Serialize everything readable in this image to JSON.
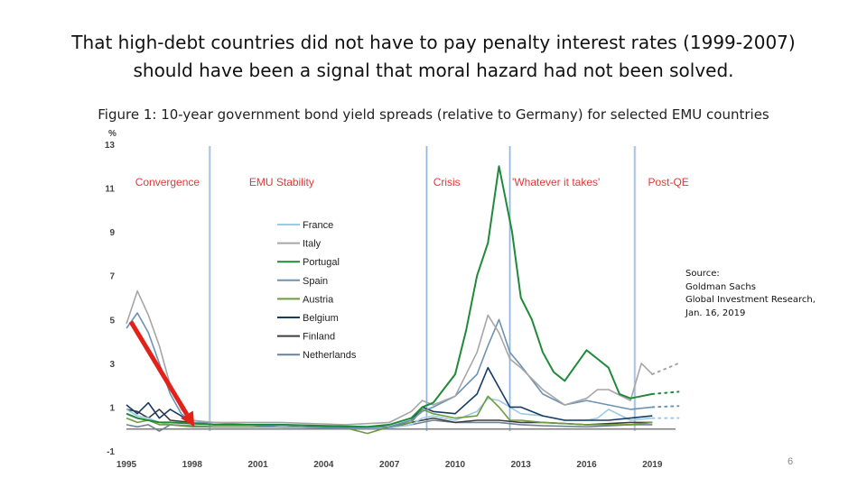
{
  "slide": {
    "title_line1": "That high-debt countries did not have to pay penalty interest rates (1999-2007)",
    "title_line2": "should have been a signal that moral hazard had not been solved.",
    "figure_caption": "Figure 1: 10-year government bond yield spreads (relative to Germany) for selected EMU countries",
    "source_lines": [
      "Source:",
      "Goldman Sachs",
      "Global Investment Research,",
      "Jan. 16, 2019"
    ],
    "page_number": "6"
  },
  "colors": {
    "France": "#9ccbe6",
    "Italy": "#a6a6a6",
    "Portugal": "#1f8a3a",
    "Spain": "#6c93b4",
    "Austria": "#6e9b3c",
    "Belgium": "#163c66",
    "Finland": "#3d3d3d",
    "Netherlands": "#6e8294",
    "period_label": "#e03a3a",
    "arrow": "#e32119"
  },
  "chart_data": {
    "type": "line",
    "title": "10-year government bond yield spreads (relative to Germany) for selected EMU countries",
    "xlabel": "",
    "ylabel": "%",
    "xlim": [
      1995,
      2020.8
    ],
    "ylim": [
      -1,
      13
    ],
    "yticks": [
      -1,
      1,
      3,
      5,
      7,
      9,
      11,
      13
    ],
    "xticks": [
      1995,
      1998,
      2001,
      2004,
      2007,
      2010,
      2013,
      2016,
      2019
    ],
    "xtick_labels": [
      "1995",
      "1998",
      "2001",
      "2004",
      "2007",
      "2010",
      "2013",
      "2016",
      "2019"
    ],
    "periods": [
      {
        "label": "Convergence",
        "x": 1995.4
      },
      {
        "label": "EMU Stability",
        "x": 2000.6
      },
      {
        "label": "Crisis",
        "x": 2009.0
      },
      {
        "label": "'Whatever it takes'",
        "x": 2012.6
      },
      {
        "label": "Post-QE",
        "x": 2018.8
      }
    ],
    "period_boundaries": [
      1998.8,
      2008.7,
      2012.5,
      2018.2
    ],
    "annotation": {
      "type": "arrow",
      "from": [
        1995.2,
        4.9
      ],
      "to": [
        1998.1,
        0.1
      ]
    },
    "series": [
      {
        "name": "France",
        "x": [
          1995,
          1995.5,
          1996,
          1996.5,
          1997,
          1998,
          1999,
          2002,
          2005,
          2007,
          2008,
          2008.5,
          2009,
          2010,
          2011,
          2011.5,
          2012,
          2013,
          2014,
          2015,
          2016,
          2016.5,
          2017,
          2018,
          2019
        ],
        "values": [
          0.9,
          0.6,
          0.5,
          0.3,
          0.2,
          0.1,
          0.1,
          0.1,
          0.05,
          0.05,
          0.2,
          0.5,
          0.6,
          0.4,
          0.8,
          1.4,
          1.3,
          0.7,
          0.6,
          0.4,
          0.4,
          0.5,
          0.9,
          0.4,
          0.5
        ],
        "forecast": {
          "x": [
            2019,
            2020.2
          ],
          "values": [
            0.5,
            0.5
          ]
        }
      },
      {
        "name": "Italy",
        "x": [
          1995,
          1995.5,
          1996,
          1996.5,
          1997,
          1997.5,
          1998,
          1999,
          2002,
          2005,
          2007,
          2008,
          2008.5,
          2009,
          2010,
          2011,
          2011.5,
          2012,
          2012.5,
          2013,
          2014,
          2015,
          2016,
          2016.5,
          2017,
          2018,
          2018.5,
          2019
        ],
        "values": [
          4.8,
          6.3,
          5.2,
          3.8,
          2.0,
          0.9,
          0.4,
          0.3,
          0.3,
          0.2,
          0.3,
          0.8,
          1.3,
          1.1,
          1.5,
          3.5,
          5.2,
          4.4,
          3.2,
          2.8,
          1.8,
          1.1,
          1.4,
          1.8,
          1.8,
          1.3,
          3.0,
          2.5
        ],
        "forecast": {
          "x": [
            2019,
            2020.2
          ],
          "values": [
            2.5,
            3.0
          ]
        }
      },
      {
        "name": "Portugal",
        "x": [
          1995,
          1995.5,
          1996,
          1996.5,
          1997,
          1998,
          1999,
          2002,
          2004,
          2006,
          2007,
          2008,
          2008.5,
          2009,
          2010,
          2010.5,
          2011,
          2011.5,
          2012,
          2012.3,
          2012.6,
          2013,
          2013.5,
          2014,
          2014.5,
          2015,
          2016,
          2016.5,
          2017,
          2017.5,
          2018,
          2018.5,
          2019
        ],
        "values": [
          0.7,
          0.5,
          0.4,
          0.3,
          0.3,
          0.25,
          0.2,
          0.2,
          0.15,
          0.1,
          0.2,
          0.5,
          1.0,
          1.2,
          2.5,
          4.5,
          7.0,
          8.5,
          12.0,
          10.5,
          9.0,
          6.0,
          5.0,
          3.5,
          2.6,
          2.2,
          3.6,
          3.2,
          2.8,
          1.6,
          1.4,
          1.5,
          1.6
        ],
        "forecast": {
          "x": [
            2019,
            2020.2
          ],
          "values": [
            1.6,
            1.7
          ]
        }
      },
      {
        "name": "Spain",
        "x": [
          1995,
          1995.5,
          1996,
          1996.5,
          1997,
          1997.5,
          1998,
          1999,
          2002,
          2005,
          2007,
          2008,
          2008.5,
          2009,
          2010,
          2011,
          2011.5,
          2012,
          2012.5,
          2013,
          2014,
          2015,
          2016,
          2017,
          2018,
          2019
        ],
        "values": [
          4.6,
          5.3,
          4.4,
          3.0,
          1.6,
          0.7,
          0.3,
          0.3,
          0.1,
          0.05,
          0.1,
          0.4,
          0.8,
          1.0,
          1.5,
          2.5,
          3.8,
          5.0,
          3.5,
          2.9,
          1.6,
          1.1,
          1.3,
          1.1,
          0.9,
          1.0
        ],
        "forecast": {
          "x": [
            2019,
            2020.2
          ],
          "values": [
            1.0,
            1.05
          ]
        }
      },
      {
        "name": "Austria",
        "x": [
          1995,
          1995.5,
          1996,
          1996.5,
          1997,
          1998,
          1999,
          2002,
          2005,
          2006,
          2007,
          2008,
          2008.5,
          2009,
          2010,
          2011,
          2011.5,
          2012,
          2012.5,
          2013,
          2014,
          2016,
          2018,
          2019
        ],
        "values": [
          0.5,
          0.3,
          0.4,
          0.2,
          0.2,
          0.1,
          0.1,
          0.1,
          0.05,
          -0.2,
          0.1,
          0.3,
          0.9,
          0.7,
          0.5,
          0.6,
          1.5,
          1.0,
          0.4,
          0.4,
          0.3,
          0.2,
          0.2,
          0.3
        ],
        "forecast": null
      },
      {
        "name": "Belgium",
        "x": [
          1995,
          1995.5,
          1996,
          1996.5,
          1997,
          1998,
          1999,
          2002,
          2005,
          2007,
          2008,
          2008.5,
          2009,
          2010,
          2011,
          2011.5,
          2012,
          2012.5,
          2013,
          2014,
          2015,
          2016,
          2017,
          2018,
          2019
        ],
        "values": [
          1.1,
          0.7,
          1.2,
          0.5,
          0.9,
          0.3,
          0.2,
          0.2,
          0.1,
          0.1,
          0.4,
          1.0,
          0.8,
          0.7,
          1.6,
          2.8,
          1.9,
          1.0,
          1.0,
          0.6,
          0.4,
          0.4,
          0.4,
          0.5,
          0.6
        ],
        "forecast": null
      },
      {
        "name": "Finland",
        "x": [
          1995,
          1995.5,
          1996,
          1996.5,
          1997,
          1998,
          1999,
          2002,
          2005,
          2007,
          2008,
          2009,
          2010,
          2011,
          2012,
          2013,
          2014,
          2016,
          2018,
          2019
        ],
        "values": [
          0.9,
          0.8,
          0.5,
          0.9,
          0.4,
          0.3,
          0.2,
          0.2,
          0.1,
          0.05,
          0.3,
          0.5,
          0.3,
          0.4,
          0.4,
          0.3,
          0.3,
          0.2,
          0.3,
          0.3
        ],
        "forecast": null
      },
      {
        "name": "Netherlands",
        "x": [
          1995,
          1995.5,
          1996,
          1996.5,
          1997,
          1998,
          1999,
          2002,
          2005,
          2007,
          2008,
          2009,
          2010,
          2011,
          2012,
          2013,
          2014,
          2016,
          2018,
          2019
        ],
        "values": [
          0.2,
          0.1,
          0.2,
          -0.1,
          0.2,
          0.15,
          0.1,
          0.1,
          0.05,
          0.05,
          0.2,
          0.4,
          0.3,
          0.3,
          0.3,
          0.2,
          0.15,
          0.1,
          0.2,
          0.2
        ],
        "forecast": null
      }
    ]
  }
}
